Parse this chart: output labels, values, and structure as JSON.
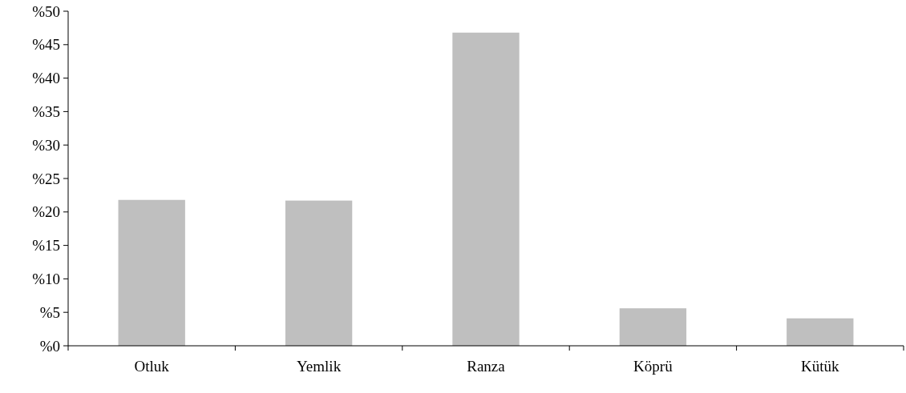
{
  "chart_data": {
    "type": "bar",
    "categories": [
      "Otluk",
      "Yemlik",
      "Ranza",
      "Köprü",
      "Kütük"
    ],
    "values": [
      21.8,
      21.7,
      46.8,
      5.6,
      4.1
    ],
    "color": "#bfbfbf",
    "ylim": [
      0,
      50
    ],
    "yticks": [
      {
        "value": 0,
        "label": "%0"
      },
      {
        "value": 5,
        "label": "%5"
      },
      {
        "value": 10,
        "label": "%10"
      },
      {
        "value": 15,
        "label": "%15"
      },
      {
        "value": 20,
        "label": "%20"
      },
      {
        "value": 25,
        "label": "%25"
      },
      {
        "value": 30,
        "label": "%30"
      },
      {
        "value": 35,
        "label": "%35"
      },
      {
        "value": 40,
        "label": "%40"
      },
      {
        "value": 45,
        "label": "%45"
      },
      {
        "value": 50,
        "label": "%50"
      }
    ],
    "grid": false
  }
}
